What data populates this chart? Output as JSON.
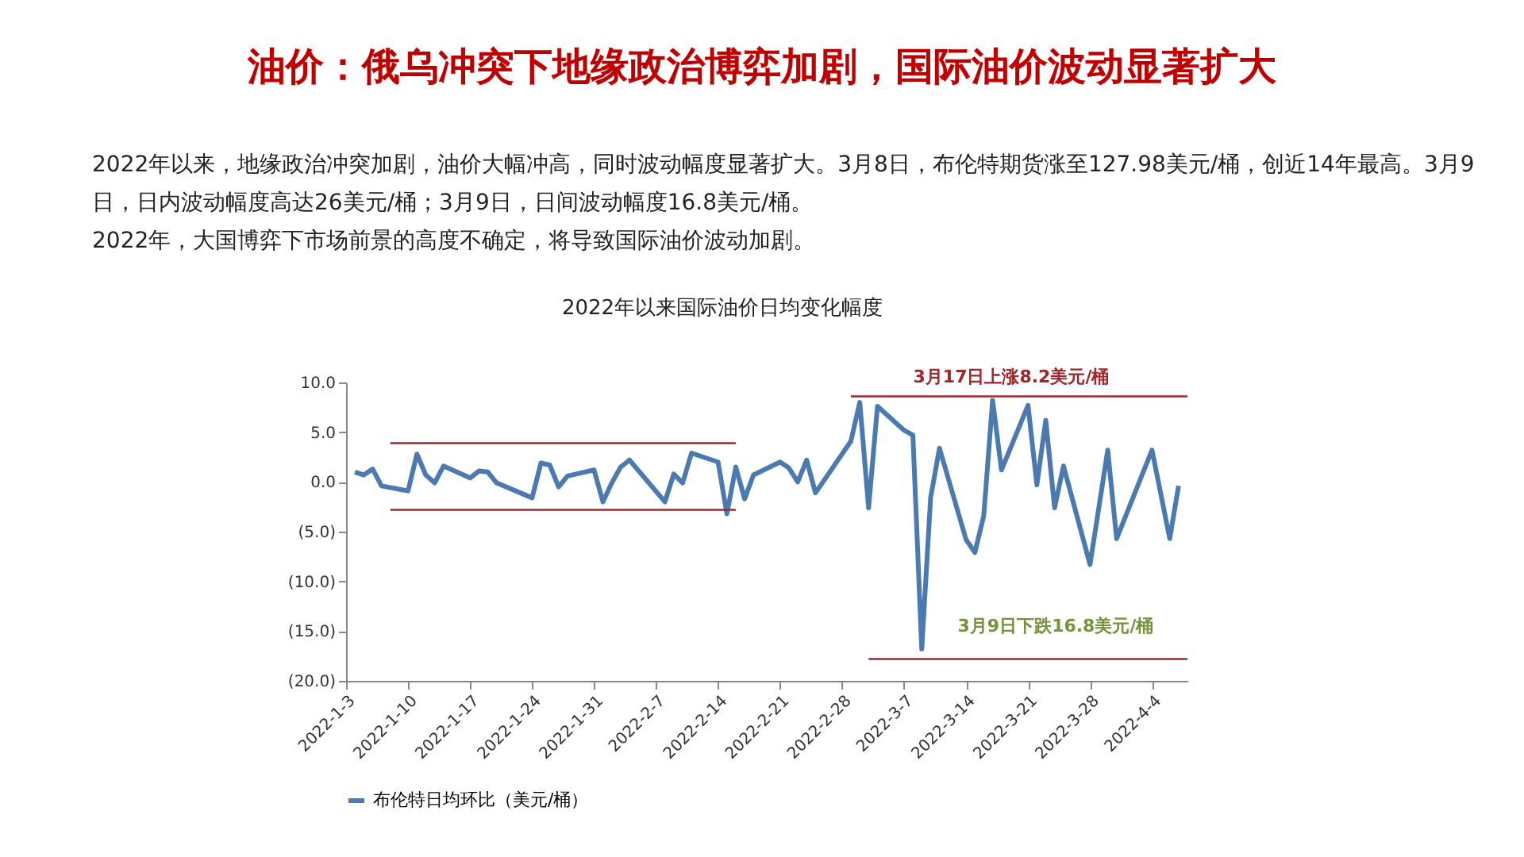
{
  "chart_data": {
    "type": "line",
    "title": "油价：俄乌冲突下地缘政治博弈加剧，国际油价波动显著扩大",
    "subtitle": "2022年以来国际油价日均变化幅度",
    "annotations": [
      "2022年以来，地缘政治冲突加剧，油价大幅冲高，同时波动幅度显著扩大。3月8日，布伦特期货涨至127.98美元/桶，创近14年最高。3月9日，日内波动幅度高达26美元/桶；3月9日，日间波动幅度16.8美元/桶。",
      "2022年，大国博弈下市场前景的高度不确定，将导致国际油价波动加剧。",
      "3月17日上涨8.2美元/桶",
      "3月9日下跌16.8美元/桶"
    ],
    "series": [
      {
        "name": "布伦特日均环比（美元/桶）",
        "color": "#4a7ab0",
        "x": [
          "2022-01-04",
          "2022-01-05",
          "2022-01-06",
          "2022-01-07",
          "2022-01-10",
          "2022-01-11",
          "2022-01-12",
          "2022-01-13",
          "2022-01-14",
          "2022-01-17",
          "2022-01-18",
          "2022-01-19",
          "2022-01-20",
          "2022-01-24",
          "2022-01-25",
          "2022-01-26",
          "2022-01-27",
          "2022-01-28",
          "2022-01-31",
          "2022-02-01",
          "2022-02-02",
          "2022-02-03",
          "2022-02-04",
          "2022-02-08",
          "2022-02-09",
          "2022-02-10",
          "2022-02-11",
          "2022-02-14",
          "2022-02-15",
          "2022-02-16",
          "2022-02-17",
          "2022-02-18",
          "2022-02-21",
          "2022-02-22",
          "2022-02-23",
          "2022-02-24",
          "2022-02-25",
          "2022-03-01",
          "2022-03-02",
          "2022-03-03",
          "2022-03-04",
          "2022-03-07",
          "2022-03-08",
          "2022-03-09",
          "2022-03-10",
          "2022-03-11",
          "2022-03-14",
          "2022-03-15",
          "2022-03-16",
          "2022-03-17",
          "2022-03-18",
          "2022-03-21",
          "2022-03-22",
          "2022-03-23",
          "2022-03-24",
          "2022-03-25",
          "2022-03-28",
          "2022-03-30",
          "2022-03-31",
          "2022-04-04",
          "2022-04-06",
          "2022-04-07"
        ],
        "values": [
          1.0,
          0.7,
          1.3,
          -0.4,
          -0.9,
          2.8,
          0.7,
          -0.1,
          1.6,
          0.4,
          1.1,
          1.0,
          -0.1,
          -1.6,
          1.9,
          1.7,
          -0.5,
          0.6,
          1.2,
          -2.0,
          -0.1,
          1.5,
          2.2,
          -2.0,
          0.8,
          -0.1,
          2.9,
          2.0,
          -3.2,
          1.5,
          -1.7,
          0.7,
          2.0,
          1.4,
          0.0,
          2.2,
          -1.1,
          4.1,
          8.0,
          -2.6,
          7.6,
          5.2,
          4.7,
          -16.8,
          -1.6,
          3.4,
          -5.8,
          -7.1,
          -3.4,
          8.2,
          1.2,
          7.7,
          -0.3,
          6.2,
          -2.6,
          1.6,
          -8.3,
          3.2,
          -5.7,
          3.2,
          -5.7,
          -0.4
        ]
      },
      {
        "type": "line",
        "color": "#a0262a",
        "x": [
          "2022-01-08",
          "2022-02-16"
        ],
        "values": [
          3.9,
          3.9
        ]
      },
      {
        "type": "line",
        "color": "#a0262a",
        "x": [
          "2022-01-08",
          "2022-02-16"
        ],
        "values": [
          -2.8,
          -2.8
        ]
      },
      {
        "type": "line",
        "color": "#a0262a",
        "x": [
          "2022-03-01",
          "2022-04-08"
        ],
        "values": [
          8.6,
          8.6
        ]
      },
      {
        "type": "line",
        "color": "#a0262a",
        "x": [
          "2022-03-03",
          "2022-04-08"
        ],
        "values": [
          -17.8,
          -17.8
        ]
      }
    ],
    "xlim": [
      "2022-01-03",
      "2022-04-08"
    ],
    "xticks": [
      {
        "value": "2022-01-03",
        "label": "2022-1-3"
      },
      {
        "value": "2022-01-10",
        "label": "2022-1-10"
      },
      {
        "value": "2022-01-17",
        "label": "2022-1-17"
      },
      {
        "value": "2022-01-24",
        "label": "2022-1-24"
      },
      {
        "value": "2022-01-31",
        "label": "2022-1-31"
      },
      {
        "value": "2022-02-07",
        "label": "2022-2-7"
      },
      {
        "value": "2022-02-14",
        "label": "2022-2-14"
      },
      {
        "value": "2022-02-21",
        "label": "2022-2-21"
      },
      {
        "value": "2022-02-28",
        "label": "2022-2-28"
      },
      {
        "value": "2022-03-07",
        "label": "2022-3-7"
      },
      {
        "value": "2022-03-14",
        "label": "2022-3-14"
      },
      {
        "value": "2022-03-21",
        "label": "2022-3-21"
      },
      {
        "value": "2022-03-28",
        "label": "2022-3-28"
      },
      {
        "value": "2022-04-04",
        "label": "2022-4-4"
      }
    ],
    "ylim": [
      -20,
      10
    ],
    "yticks": [
      {
        "value": -20,
        "label": "(20.0)"
      },
      {
        "value": -15,
        "label": "(15.0)"
      },
      {
        "value": -10,
        "label": "(10.0)"
      },
      {
        "value": -5,
        "label": "(5.0)"
      },
      {
        "value": 0,
        "label": "0.0"
      },
      {
        "value": 5,
        "label": "5.0"
      },
      {
        "value": 10,
        "label": "10.0"
      }
    ],
    "grid": false,
    "legend": "bottom",
    "marker": "none",
    "line_style": "solid"
  }
}
